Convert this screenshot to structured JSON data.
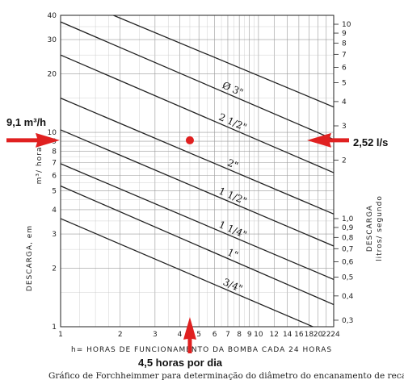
{
  "chart_data": {
    "type": "line",
    "title": "",
    "caption": "Gráfico de Forchheimmer para determinação do diâmetro do encanamento de recalque.",
    "xlabel": "h= HORAS DE FUNCIONAMENTO DA BOMBA CADA 24 HORAS",
    "ylabel_left_main": "DESCARGA, em",
    "ylabel_left_unit": "m³/ hora",
    "ylabel_right_main": "DESCARGA",
    "ylabel_right_unit": "litros/ segundo",
    "x_scale": "log",
    "y_scale": "log",
    "xlim": [
      1,
      24
    ],
    "ylim_left": [
      1,
      40
    ],
    "grid": true,
    "x_ticks": [
      "1",
      "2",
      "3",
      "4",
      "5",
      "6",
      "7",
      "8",
      "9",
      "10",
      "12",
      "14",
      "16",
      "18",
      "20",
      "22",
      "24"
    ],
    "y_left_ticks": [
      "1",
      "2",
      "3",
      "4",
      "5",
      "6",
      "7",
      "8",
      "9",
      "10",
      "20",
      "30",
      "40"
    ],
    "y_right_ticks": [
      "0,3",
      "0,4",
      "0,5",
      "0,6",
      "0,7",
      "0,8",
      "0,9",
      "1,0",
      "2",
      "3",
      "4",
      "5",
      "6",
      "7",
      "8",
      "9",
      "10"
    ],
    "series": [
      {
        "name": "3/4\"",
        "x": [
          1,
          24
        ],
        "y": [
          3.6,
          0.9
        ]
      },
      {
        "name": "1\"",
        "x": [
          1,
          24
        ],
        "y": [
          5.3,
          1.3
        ]
      },
      {
        "name": "1 1/4\"",
        "x": [
          1,
          24
        ],
        "y": [
          6.9,
          1.75
        ]
      },
      {
        "name": "1 1/2\"",
        "x": [
          1,
          24
        ],
        "y": [
          10.3,
          2.6
        ]
      },
      {
        "name": "2\"",
        "x": [
          1,
          24
        ],
        "y": [
          15.0,
          3.8
        ]
      },
      {
        "name": "2 1/2\"",
        "x": [
          1,
          24
        ],
        "y": [
          25.0,
          6.2
        ]
      },
      {
        "name": "Ø 3\"",
        "x": [
          1,
          24
        ],
        "y": [
          37.0,
          9.2
        ]
      },
      {
        "name": "",
        "x": [
          1.85,
          24
        ],
        "y": [
          40.0,
          13.5
        ]
      }
    ],
    "highlight_point": {
      "x": 4.5,
      "y": 9.1
    },
    "annotations": {
      "left": "9,1 m³/h",
      "right": "2,52 l/s",
      "bottom": "4,5 horas por dia"
    },
    "colors": {
      "marker": "#e02020",
      "arrow": "#e02020",
      "ink": "#222222"
    }
  }
}
